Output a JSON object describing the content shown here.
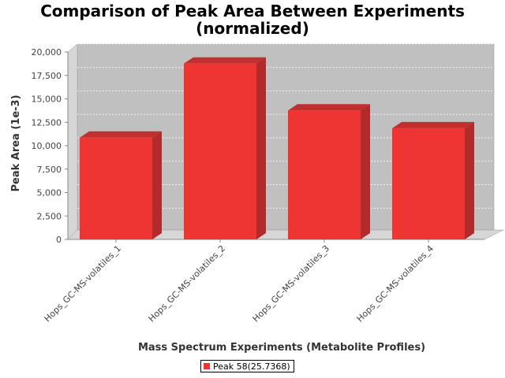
{
  "chart_data": {
    "type": "bar",
    "title_lines": [
      "Comparison of Peak Area Between Experiments",
      "(normalized)"
    ],
    "xlabel": "Mass Spectrum Experiments (Metabolite Profiles)",
    "ylabel": "Peak Area (1e-3)",
    "categories": [
      "Hops_GC-MS-volatiles_1",
      "Hops_GC-MS-volatiles_2",
      "Hops_GC-MS-volatiles_3",
      "Hops_GC-MS-volatiles_4"
    ],
    "series": [
      {
        "name": "Peak 58(25.7368)",
        "values": [
          11200,
          19100,
          14100,
          12200
        ],
        "color": "#ef3434"
      }
    ],
    "ylim": [
      0,
      20000
    ],
    "yticks": [
      0,
      2500,
      5000,
      7500,
      10000,
      12500,
      15000,
      17500,
      20000
    ],
    "ytick_labels": [
      "0",
      "2,500",
      "5,000",
      "7,500",
      "10,000",
      "12,500",
      "15,000",
      "17,500",
      "20,000"
    ],
    "grid": true,
    "style": "3d",
    "legend_position": "bottom"
  }
}
